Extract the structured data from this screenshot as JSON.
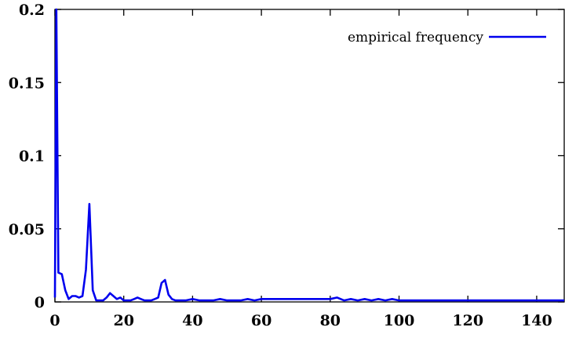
{
  "chart_data": {
    "type": "line",
    "title": "",
    "xlabel": "",
    "ylabel": "",
    "xlim": [
      0,
      148
    ],
    "ylim": [
      0,
      0.2
    ],
    "x_ticks": [
      0,
      20,
      40,
      60,
      80,
      100,
      120,
      140
    ],
    "x_tick_labels": [
      "0",
      "20",
      "40",
      "60",
      "80",
      "100",
      "120",
      "140"
    ],
    "y_ticks": [
      0,
      0.05,
      0.1,
      0.15,
      0.2
    ],
    "y_tick_labels": [
      "0",
      "0.05",
      "0.1",
      "0.15",
      "0.2"
    ],
    "grid": false,
    "legend_position": "top-right",
    "series": [
      {
        "name": "empirical frequency",
        "color": "#0000ee",
        "x": [
          0,
          0.4,
          1,
          2,
          3,
          4,
          5,
          6,
          7,
          8,
          9,
          10,
          11,
          12,
          13,
          14,
          15,
          16,
          17,
          18,
          19,
          20,
          21,
          22,
          23,
          24,
          25,
          26,
          27,
          28,
          29,
          30,
          31,
          32,
          33,
          34,
          35,
          36,
          38,
          40,
          42,
          44,
          46,
          48,
          50,
          52,
          54,
          56,
          58,
          60,
          62,
          64,
          66,
          68,
          70,
          72,
          74,
          76,
          78,
          80,
          82,
          84,
          86,
          88,
          90,
          92,
          94,
          96,
          98,
          100,
          104,
          108,
          112,
          116,
          120,
          124,
          128,
          132,
          136,
          140,
          144,
          148
        ],
        "values": [
          0.003,
          0.2,
          0.02,
          0.019,
          0.008,
          0.002,
          0.004,
          0.004,
          0.003,
          0.004,
          0.022,
          0.067,
          0.008,
          0.001,
          0.001,
          0.001,
          0.003,
          0.006,
          0.004,
          0.002,
          0.003,
          0.001,
          0.001,
          0.001,
          0.002,
          0.003,
          0.002,
          0.001,
          0.001,
          0.001,
          0.002,
          0.003,
          0.013,
          0.015,
          0.005,
          0.002,
          0.001,
          0.001,
          0.001,
          0.002,
          0.001,
          0.001,
          0.001,
          0.002,
          0.001,
          0.001,
          0.001,
          0.002,
          0.001,
          0.002,
          0.002,
          0.002,
          0.002,
          0.002,
          0.002,
          0.002,
          0.002,
          0.002,
          0.002,
          0.002,
          0.003,
          0.001,
          0.002,
          0.001,
          0.002,
          0.001,
          0.002,
          0.001,
          0.002,
          0.001,
          0.001,
          0.001,
          0.001,
          0.001,
          0.001,
          0.001,
          0.001,
          0.001,
          0.001,
          0.001,
          0.001,
          0.001
        ]
      }
    ]
  }
}
